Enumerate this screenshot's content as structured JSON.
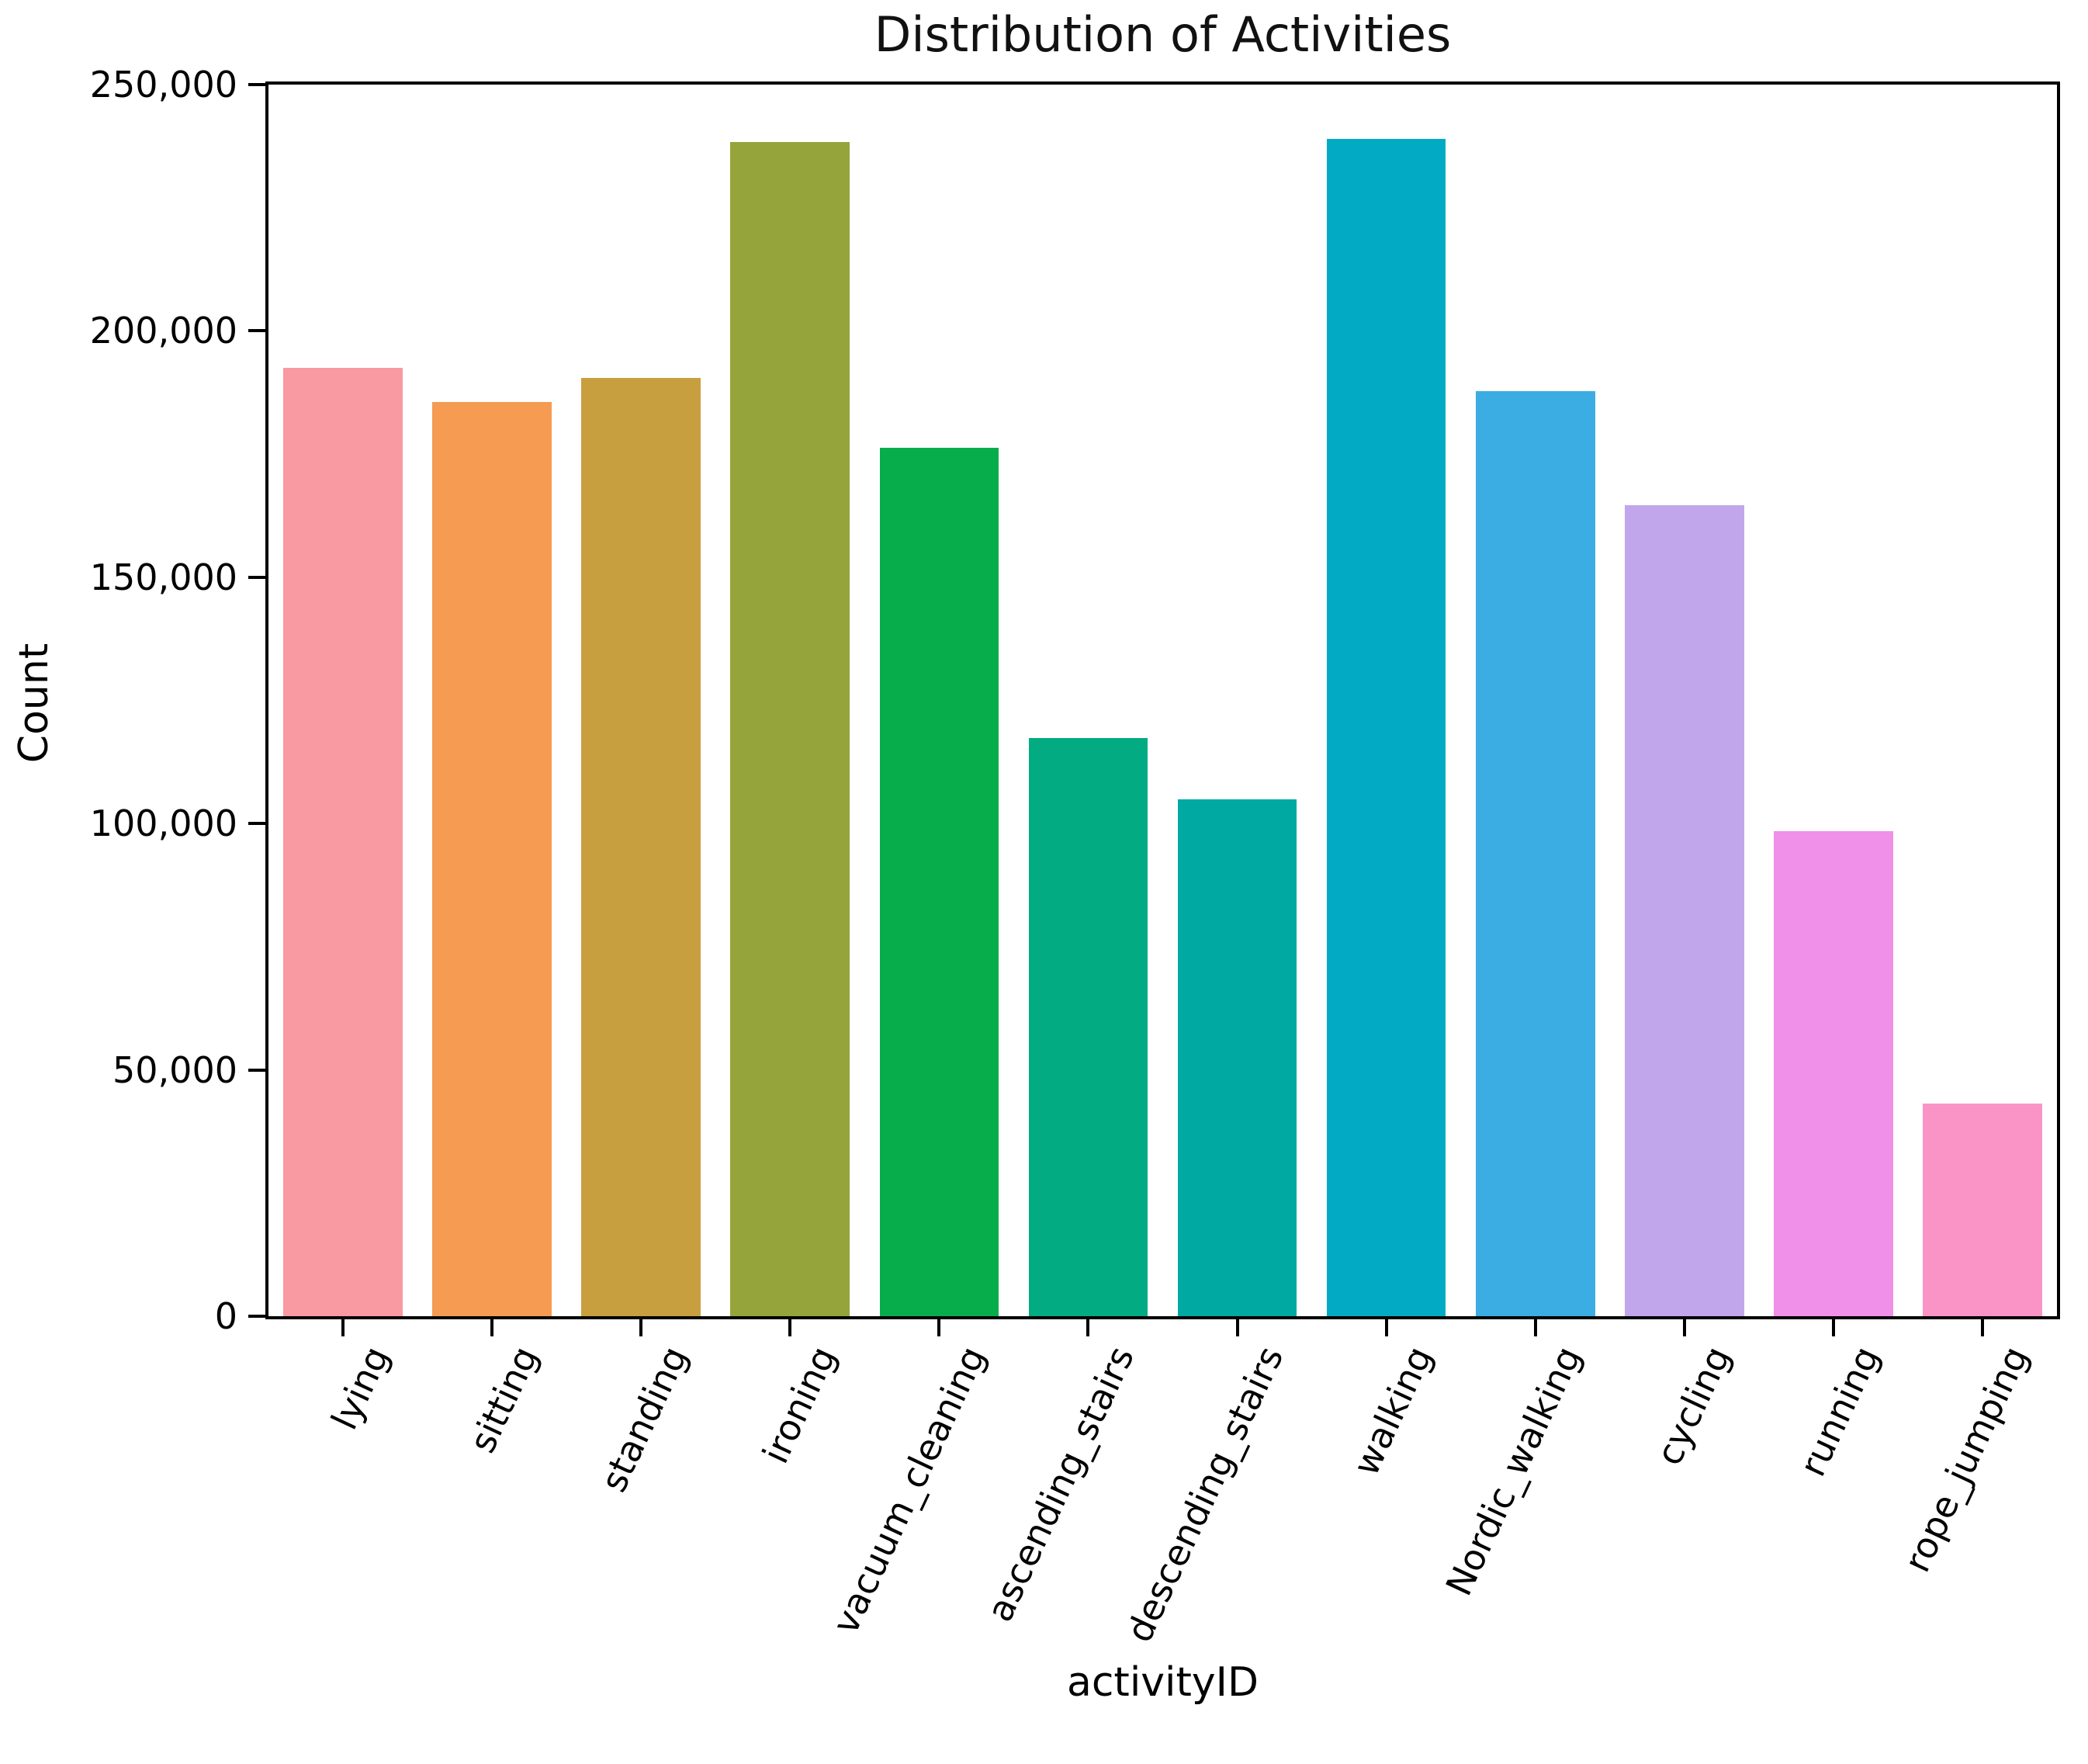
{
  "chart_data": {
    "type": "bar",
    "title": "Distribution of Activities",
    "xlabel": "activityID",
    "ylabel": "Count",
    "categories": [
      "lying",
      "sitting",
      "standing",
      "ironing",
      "vacuum_cleaning",
      "ascending_stairs",
      "descending_stairs",
      "walking",
      "Nordic_walking",
      "cycling",
      "running",
      "rope_jumping"
    ],
    "values": [
      192500,
      185600,
      190400,
      238300,
      176200,
      117400,
      104900,
      239000,
      187800,
      164600,
      98400,
      43100
    ],
    "colors": [
      "#f999a2",
      "#f59b52",
      "#c79f3e",
      "#96a43c",
      "#06ad4a",
      "#03ab82",
      "#01a9a3",
      "#02abc3",
      "#3bade3",
      "#c1a6ec",
      "#f090e8",
      "#fb94c6"
    ],
    "ylim": [
      0,
      250000
    ],
    "yticks": [
      0,
      50000,
      100000,
      150000,
      200000,
      250000
    ],
    "ytick_labels": [
      "0",
      "50,000",
      "100,000",
      "150,000",
      "200,000",
      "250,000"
    ],
    "grid": false,
    "legend": null,
    "bar_width_fraction": 0.8,
    "xtick_rotation_deg": 65,
    "axis_color": "#000000",
    "background_color": "#ffffff"
  }
}
